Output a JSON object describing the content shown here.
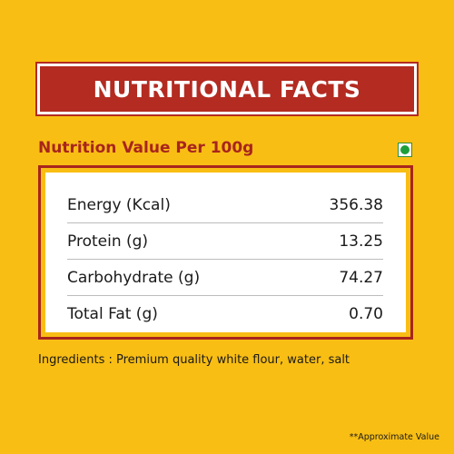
{
  "header": {
    "title": "NUTRITIONAL FACTS"
  },
  "subtitle": "Nutrition Value Per 100g",
  "veg_mark_icon": "veg-symbol-icon",
  "nutrition": {
    "rows": [
      {
        "label": "Energy (Kcal)",
        "value": "356.38"
      },
      {
        "label": "Protein (g)",
        "value": "13.25"
      },
      {
        "label": "Carbohydrate (g)",
        "value": "74.27"
      },
      {
        "label": "Total Fat (g)",
        "value": "0.70"
      }
    ]
  },
  "ingredients": "Ingredients : Premium quality white flour, water, salt",
  "footnote": "**Approximate Value",
  "colors": {
    "background": "#F9BE14",
    "accent": "#B32B21",
    "veg_green": "#1E9E3A"
  }
}
